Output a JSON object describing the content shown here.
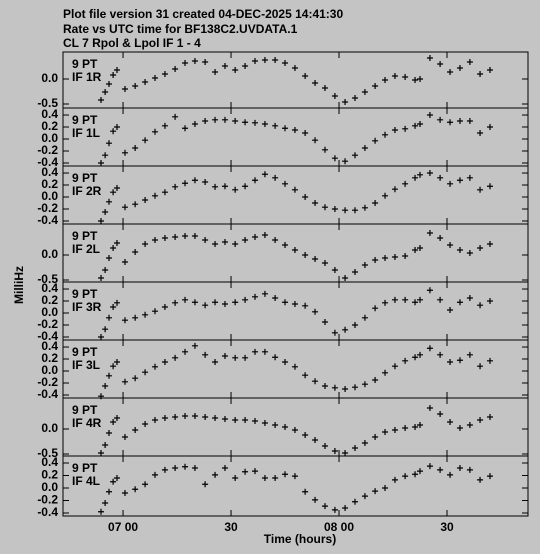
{
  "header": {
    "lines": [
      "Plot file version 31  created 04-DEC-2025 14:41:30",
      "Rate vs UTC time for BF138C2.UVDATA.1",
      "CL 7  Rpol & Lpol  IF 1 - 4"
    ]
  },
  "xlabel": "Time (hours)",
  "ylabel": "MilliHz",
  "chart_data": [
    {
      "type": "scatter",
      "annotations": [
        "9 PT",
        "IF 1R"
      ],
      "xlim": [
        6.722,
        8.875
      ],
      "ylim": [
        -0.58,
        0.54
      ],
      "yticks": [
        {
          "value": 0,
          "label": "0.0"
        },
        -0.5
      ],
      "x": [
        6.898,
        6.917,
        6.935,
        6.954,
        6.972,
        7.009,
        7.056,
        7.102,
        7.148,
        7.194,
        7.241,
        7.287,
        7.333,
        7.38,
        7.426,
        7.472,
        7.519,
        7.565,
        7.611,
        7.657,
        7.704,
        7.75,
        7.796,
        7.843,
        7.889,
        7.935,
        7.981,
        8.028,
        8.074,
        8.12,
        8.167,
        8.213,
        8.259,
        8.306,
        8.352,
        8.375,
        8.421,
        8.468,
        8.514,
        8.56,
        8.606,
        8.653,
        8.699
      ],
      "values": [
        -0.42,
        -0.26,
        -0.1,
        0.08,
        0.18,
        -0.2,
        -0.14,
        -0.06,
        0.02,
        0.1,
        0.2,
        0.32,
        0.36,
        0.34,
        0.14,
        0.26,
        0.18,
        0.26,
        0.36,
        0.38,
        0.38,
        0.32,
        0.22,
        0.06,
        -0.08,
        -0.18,
        -0.34,
        -0.46,
        -0.38,
        -0.26,
        -0.14,
        -0.02,
        0.06,
        0.04,
        -0.02,
        0,
        0.42,
        0.3,
        0.14,
        0.22,
        0.34,
        0.1,
        0.18
      ]
    },
    {
      "type": "scatter",
      "annotations": [
        "9 PT",
        "IF 1L"
      ],
      "xlim": [
        6.722,
        8.875
      ],
      "ylim": [
        -0.45,
        0.517
      ],
      "yticks": [
        0.4,
        0.2,
        {
          "value": 0,
          "label": "0.0"
        },
        -0.2,
        -0.4
      ],
      "x": [
        6.898,
        6.917,
        6.935,
        6.954,
        6.972,
        7.009,
        7.056,
        7.102,
        7.148,
        7.194,
        7.241,
        7.287,
        7.333,
        7.38,
        7.426,
        7.472,
        7.519,
        7.565,
        7.611,
        7.657,
        7.704,
        7.75,
        7.796,
        7.843,
        7.889,
        7.935,
        7.981,
        8.028,
        8.074,
        8.12,
        8.167,
        8.213,
        8.259,
        8.306,
        8.352,
        8.375,
        8.421,
        8.468,
        8.514,
        8.56,
        8.606,
        8.653,
        8.699
      ],
      "values": [
        -0.4,
        -0.27,
        -0.07,
        0.13,
        0.2,
        -0.23,
        -0.15,
        -0.02,
        0.12,
        0.22,
        0.37,
        0.18,
        0.25,
        0.3,
        0.32,
        0.32,
        0.3,
        0.28,
        0.27,
        0.25,
        0.22,
        0.18,
        0.15,
        0.1,
        -0.02,
        -0.18,
        -0.32,
        -0.37,
        -0.27,
        -0.15,
        -0.03,
        0.07,
        0.15,
        0.17,
        0.22,
        0.25,
        0.4,
        0.32,
        0.28,
        0.3,
        0.3,
        0.1,
        0.2
      ]
    },
    {
      "type": "scatter",
      "annotations": [
        "9 PT",
        "IF 2R"
      ],
      "xlim": [
        6.722,
        8.875
      ],
      "ylim": [
        -0.45,
        0.517
      ],
      "yticks": [
        0.4,
        0.2,
        {
          "value": 0,
          "label": "0.0"
        },
        -0.2,
        -0.4
      ],
      "x": [
        6.898,
        6.917,
        6.935,
        6.954,
        6.972,
        7.009,
        7.056,
        7.102,
        7.148,
        7.194,
        7.241,
        7.287,
        7.333,
        7.38,
        7.426,
        7.472,
        7.519,
        7.565,
        7.611,
        7.657,
        7.704,
        7.75,
        7.796,
        7.843,
        7.889,
        7.935,
        7.981,
        8.028,
        8.074,
        8.12,
        8.167,
        8.213,
        8.259,
        8.306,
        8.352,
        8.375,
        8.421,
        8.468,
        8.514,
        8.56,
        8.606,
        8.653,
        8.699
      ],
      "values": [
        -0.4,
        -0.25,
        -0.08,
        0.08,
        0.15,
        -0.17,
        -0.12,
        -0.05,
        0.02,
        0.08,
        0.17,
        0.23,
        0.28,
        0.25,
        0.17,
        0.18,
        0.12,
        0.18,
        0.28,
        0.38,
        0.32,
        0.22,
        0.12,
        0,
        -0.1,
        -0.17,
        -0.2,
        -0.22,
        -0.22,
        -0.18,
        -0.1,
        0.02,
        0.13,
        0.22,
        0.32,
        0.37,
        0.4,
        0.32,
        0.22,
        0.28,
        0.32,
        0.12,
        0.18
      ]
    },
    {
      "type": "scatter",
      "annotations": [
        "9 PT",
        "IF 2L"
      ],
      "xlim": [
        6.722,
        8.875
      ],
      "ylim": [
        -0.54,
        0.62
      ],
      "yticks": [
        {
          "value": 0,
          "label": "0.0"
        },
        -0.5
      ],
      "x": [
        6.898,
        6.917,
        6.935,
        6.954,
        6.972,
        7.009,
        7.056,
        7.102,
        7.148,
        7.194,
        7.241,
        7.287,
        7.333,
        7.38,
        7.426,
        7.472,
        7.519,
        7.565,
        7.611,
        7.657,
        7.704,
        7.75,
        7.796,
        7.843,
        7.889,
        7.935,
        7.981,
        8.028,
        8.074,
        8.12,
        8.167,
        8.213,
        8.259,
        8.306,
        8.352,
        8.375,
        8.421,
        8.468,
        8.514,
        8.56,
        8.606,
        8.653,
        8.699
      ],
      "values": [
        -0.46,
        -0.3,
        -0.06,
        0.14,
        0.24,
        -0.14,
        0.06,
        0.22,
        0.3,
        0.34,
        0.36,
        0.38,
        0.38,
        0.3,
        0.22,
        0.26,
        0.22,
        0.3,
        0.36,
        0.4,
        0.3,
        0.2,
        0.1,
        0,
        -0.08,
        -0.16,
        -0.3,
        -0.46,
        -0.34,
        -0.2,
        -0.1,
        -0.06,
        -0.04,
        -0.02,
        0.1,
        0.14,
        0.44,
        0.34,
        0.2,
        0.1,
        0.04,
        0.14,
        0.22
      ]
    },
    {
      "type": "scatter",
      "annotations": [
        "9 PT",
        "IF 3R"
      ],
      "xlim": [
        6.722,
        8.875
      ],
      "ylim": [
        -0.45,
        0.517
      ],
      "yticks": [
        0.4,
        0.2,
        {
          "value": 0,
          "label": "0.0"
        },
        -0.2,
        -0.4
      ],
      "x": [
        6.898,
        6.917,
        6.935,
        6.954,
        6.972,
        7.009,
        7.056,
        7.102,
        7.148,
        7.194,
        7.241,
        7.287,
        7.333,
        7.38,
        7.426,
        7.472,
        7.519,
        7.565,
        7.611,
        7.657,
        7.704,
        7.75,
        7.796,
        7.843,
        7.889,
        7.935,
        7.981,
        8.028,
        8.074,
        8.12,
        8.167,
        8.213,
        8.259,
        8.306,
        8.352,
        8.375,
        8.421,
        8.468,
        8.514,
        8.56,
        8.606,
        8.653,
        8.699
      ],
      "values": [
        -0.4,
        -0.27,
        -0.08,
        0.1,
        0.17,
        -0.12,
        -0.08,
        -0.03,
        0.03,
        0.1,
        0.17,
        0.22,
        0.18,
        0.13,
        0.18,
        0.15,
        0.18,
        0.22,
        0.27,
        0.32,
        0.25,
        0.18,
        0.15,
        0.12,
        0.02,
        -0.15,
        -0.33,
        -0.28,
        -0.2,
        -0.08,
        0.08,
        0.17,
        0.22,
        0.22,
        0.18,
        0.22,
        0.38,
        0.22,
        0.05,
        0.18,
        0.25,
        0.13,
        0.2
      ]
    },
    {
      "type": "scatter",
      "annotations": [
        "9 PT",
        "IF 3L"
      ],
      "xlim": [
        6.722,
        8.875
      ],
      "ylim": [
        -0.45,
        0.517
      ],
      "yticks": [
        0.4,
        0.2,
        {
          "value": 0,
          "label": "0.0"
        },
        -0.2,
        -0.4
      ],
      "x": [
        6.898,
        6.917,
        6.935,
        6.954,
        6.972,
        7.009,
        7.056,
        7.102,
        7.148,
        7.194,
        7.241,
        7.287,
        7.333,
        7.38,
        7.426,
        7.472,
        7.519,
        7.565,
        7.611,
        7.657,
        7.704,
        7.75,
        7.796,
        7.843,
        7.889,
        7.935,
        7.981,
        8.028,
        8.074,
        8.12,
        8.167,
        8.213,
        8.259,
        8.306,
        8.352,
        8.375,
        8.421,
        8.468,
        8.514,
        8.56,
        8.606,
        8.653,
        8.699
      ],
      "values": [
        -0.42,
        -0.25,
        -0.08,
        0.08,
        0.15,
        -0.18,
        -0.12,
        -0.02,
        0.07,
        0.15,
        0.22,
        0.32,
        0.42,
        0.27,
        0.15,
        0.25,
        0.22,
        0.22,
        0.32,
        0.32,
        0.23,
        0.15,
        0.07,
        -0.07,
        -0.17,
        -0.25,
        -0.28,
        -0.3,
        -0.27,
        -0.22,
        -0.15,
        -0.03,
        0.08,
        0.17,
        0.23,
        0.27,
        0.38,
        0.27,
        0.15,
        0.18,
        0.27,
        0.08,
        0.17
      ]
    },
    {
      "type": "scatter",
      "annotations": [
        "9 PT",
        "IF 4R"
      ],
      "xlim": [
        6.722,
        8.875
      ],
      "ylim": [
        -0.54,
        0.62
      ],
      "yticks": [
        {
          "value": 0,
          "label": "0.0"
        },
        -0.5
      ],
      "x": [
        6.898,
        6.917,
        6.935,
        6.954,
        6.972,
        7.009,
        7.056,
        7.102,
        7.148,
        7.194,
        7.241,
        7.287,
        7.333,
        7.38,
        7.426,
        7.472,
        7.519,
        7.565,
        7.611,
        7.657,
        7.704,
        7.75,
        7.796,
        7.843,
        7.889,
        7.935,
        7.981,
        8.028,
        8.074,
        8.12,
        8.167,
        8.213,
        8.259,
        8.306,
        8.352,
        8.375,
        8.421,
        8.468,
        8.514,
        8.56,
        8.606,
        8.653,
        8.699
      ],
      "values": [
        -0.48,
        -0.32,
        -0.08,
        0.14,
        0.22,
        -0.16,
        -0.02,
        0.1,
        0.18,
        0.22,
        0.24,
        0.26,
        0.26,
        0.24,
        0.22,
        0.2,
        0.18,
        0.18,
        0.16,
        0.12,
        0.08,
        0.04,
        -0.02,
        -0.12,
        -0.22,
        -0.34,
        -0.44,
        -0.48,
        -0.38,
        -0.28,
        -0.16,
        -0.06,
        -0.02,
        0.02,
        0.04,
        0.08,
        0.42,
        0.3,
        0.14,
        0.02,
        0.08,
        0.18,
        0.24
      ]
    },
    {
      "type": "scatter",
      "annotations": [
        "9 PT",
        "IF 4L"
      ],
      "xlim": [
        6.722,
        8.875
      ],
      "ylim": [
        -0.448,
        0.512
      ],
      "yticks": [
        0.4,
        0.2,
        {
          "value": 0,
          "label": "0.0"
        },
        -0.2,
        -0.4
      ],
      "xticks": [
        {
          "value": 7,
          "label": "07 00"
        },
        {
          "value": 7.5,
          "label": "30"
        },
        {
          "value": 8,
          "label": "08 00"
        },
        {
          "value": 8.5,
          "label": "30"
        }
      ],
      "x": [
        6.898,
        6.917,
        6.935,
        6.954,
        6.972,
        7.009,
        7.056,
        7.102,
        7.148,
        7.194,
        7.241,
        7.287,
        7.333,
        7.38,
        7.426,
        7.472,
        7.519,
        7.565,
        7.611,
        7.657,
        7.704,
        7.75,
        7.796,
        7.843,
        7.889,
        7.935,
        7.981,
        8.028,
        8.074,
        8.12,
        8.167,
        8.213,
        8.259,
        8.306,
        8.352,
        8.375,
        8.421,
        8.468,
        8.514,
        8.56,
        8.606,
        8.653,
        8.699
      ],
      "values": [
        -0.38,
        -0.24,
        -0.06,
        0.1,
        0.16,
        -0.08,
        -0.02,
        0.06,
        0.21,
        0.29,
        0.32,
        0.34,
        0.32,
        0.06,
        0.21,
        0.32,
        0.16,
        0.26,
        0.27,
        0.16,
        0.16,
        0.22,
        0.19,
        -0.06,
        -0.19,
        -0.29,
        -0.35,
        -0.32,
        -0.22,
        -0.13,
        -0.05,
        0,
        0.13,
        0.19,
        0.22,
        0.27,
        0.35,
        0.29,
        0.21,
        0.32,
        0.29,
        0.13,
        0.19
      ]
    }
  ]
}
